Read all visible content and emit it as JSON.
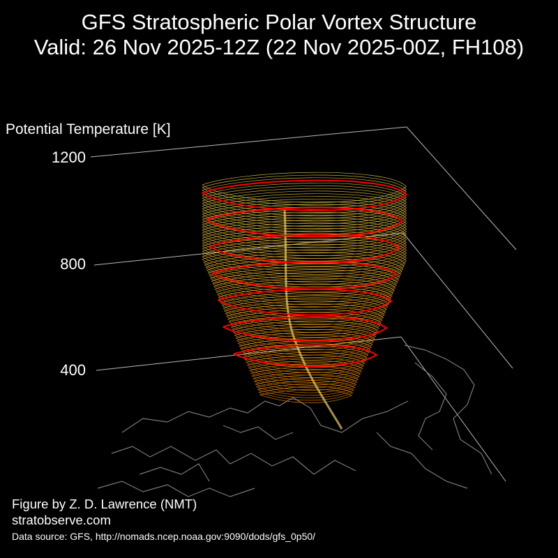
{
  "header": {
    "title_line1": "GFS Stratospheric Polar Vortex Structure",
    "title_line2": "Valid: 26 Nov 2025-12Z  (22 Nov 2025-00Z, FH108)"
  },
  "chart_data": {
    "type": "3d-isosurface",
    "title": "GFS Stratospheric Polar Vortex Structure",
    "subtitle": "Valid: 26 Nov 2025-12Z  (22 Nov 2025-00Z, FH108)",
    "zlabel": "Potential Temperature [K]",
    "zticks": [
      400,
      800,
      1200
    ],
    "zlim": [
      200,
      1250
    ],
    "surface_color_low": "#ff8c00",
    "surface_color_high": "#e8d44d",
    "contour_color": "#ff0000",
    "coastline_color": "#808080",
    "grid": true,
    "contour_levels": [
      {
        "theta": 450,
        "extent": 0.7
      },
      {
        "theta": 550,
        "extent": 0.8
      },
      {
        "theta": 650,
        "extent": 0.85
      },
      {
        "theta": 750,
        "extent": 0.9
      },
      {
        "theta": 850,
        "extent": 0.93
      },
      {
        "theta": 950,
        "extent": 0.96
      },
      {
        "theta": 1050,
        "extent": 1.0
      }
    ]
  },
  "footer": {
    "credit": "Figure by Z. D. Lawrence (NMT)",
    "site": "stratobserve.com",
    "source": "Data source: GFS, http://nomads.ncep.noaa.gov:9090/dods/gfs_0p50/"
  }
}
